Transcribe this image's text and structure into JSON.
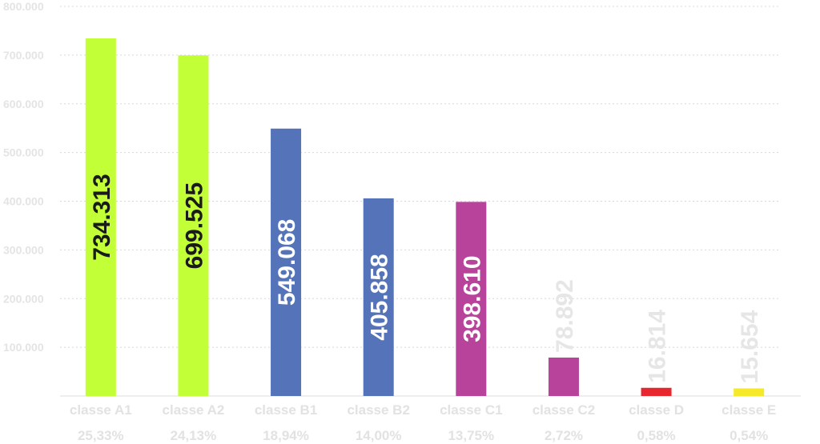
{
  "chart_data": {
    "type": "bar",
    "ylim": [
      0,
      800000
    ],
    "yticks": [
      100000,
      200000,
      300000,
      400000,
      500000,
      600000,
      700000,
      800000
    ],
    "ytick_labels": [
      "100.000",
      "200.000",
      "300.000",
      "400.000",
      "500.000",
      "600.000",
      "700.000",
      "800.000"
    ],
    "grid": true,
    "categories": [
      "classe A1",
      "classe A2",
      "classe B1",
      "classe B2",
      "classe C1",
      "classe C2",
      "classe D",
      "classe E"
    ],
    "percentages": [
      "25,33%",
      "24,13%",
      "18,94%",
      "14,00%",
      "13,75%",
      "2,72%",
      "0,58%",
      "0,54%"
    ],
    "values": [
      734313,
      699525,
      549068,
      405858,
      398610,
      78892,
      16814,
      15654
    ],
    "value_labels": [
      "734.313",
      "699.525",
      "549.068",
      "405.858",
      "398.610",
      "78.892",
      "16.814",
      "15.654"
    ],
    "colors": [
      "#c3ff36",
      "#c3ff36",
      "#5473b9",
      "#5473b9",
      "#b7439b",
      "#b7439b",
      "#e8262d",
      "#f5e92a"
    ],
    "label_colors": [
      "#1a1a1a",
      "#1a1a1a",
      "#ffffff",
      "#ffffff",
      "#ffffff",
      "#e6e6e6",
      "#e6e6e6",
      "#e6e6e6"
    ]
  }
}
